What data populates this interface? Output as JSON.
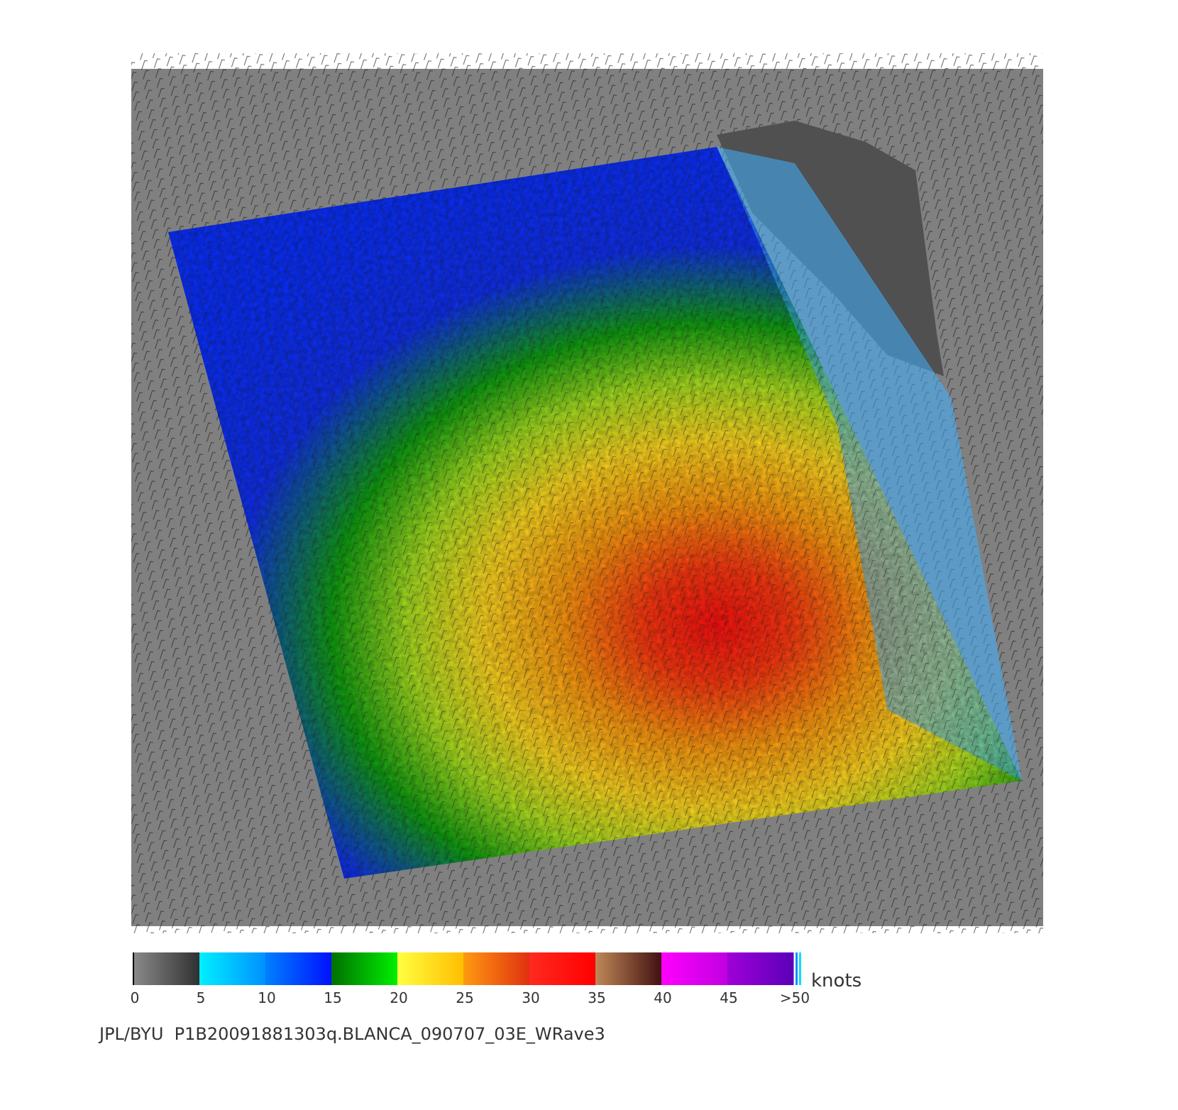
{
  "colorbar": {
    "unit": "knots",
    "lim": [
      0,
      50
    ],
    "ticks": [
      0,
      5,
      10,
      15,
      20,
      25,
      30,
      35,
      40,
      45,
      {
        "value": 50,
        "label": ">50"
      }
    ],
    "segments": [
      [
        "#8a8a8a",
        "#303030"
      ],
      [
        "#00f0ff",
        "#0090ff"
      ],
      [
        "#0080ff",
        "#0010ff"
      ],
      [
        "#007000",
        "#00f000"
      ],
      [
        "#ffff40",
        "#ffbe00"
      ],
      [
        "#ff9a10",
        "#e03010"
      ],
      [
        "#ff2a20",
        "#ff0000"
      ],
      [
        "#c08858",
        "#401010"
      ],
      [
        "#ff00ff",
        "#c000e0"
      ],
      [
        "#a000d8",
        "#5a00b8"
      ]
    ]
  },
  "footer": "JPL/BYU  P1B20091881303q.BLANCA_090707_03E_WRave3"
}
